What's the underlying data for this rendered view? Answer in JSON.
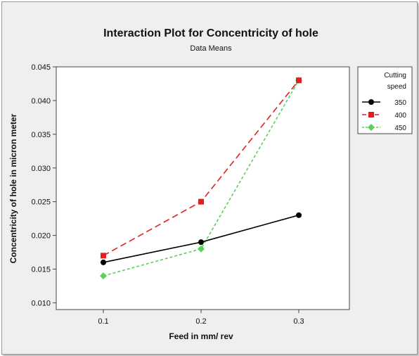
{
  "chart_data": {
    "type": "line",
    "title": "Interaction Plot for Concentricity of hole",
    "subtitle": "Data Means",
    "xlabel": "Feed in mm/ rev",
    "ylabel": "Concentricity of hole in micron meter",
    "categories": [
      "0.1",
      "0.2",
      "0.3"
    ],
    "ylim": [
      0.009,
      0.045
    ],
    "yticks": [
      "0.010",
      "0.015",
      "0.020",
      "0.025",
      "0.030",
      "0.035",
      "0.040",
      "0.045"
    ],
    "legend": {
      "title_line1": "Cutting",
      "title_line2": "speed",
      "placement": "right"
    },
    "grid": false,
    "series": [
      {
        "name": "350",
        "values": [
          0.016,
          0.019,
          0.023
        ],
        "color": "#000000",
        "marker": "circle",
        "dash": "solid"
      },
      {
        "name": "400",
        "values": [
          0.017,
          0.025,
          0.043
        ],
        "color": "#e02020",
        "marker": "square",
        "dash": "long-dash"
      },
      {
        "name": "450",
        "values": [
          0.014,
          0.018,
          0.043
        ],
        "color": "#5ad05a",
        "marker": "diamond",
        "dash": "short-dash"
      }
    ]
  }
}
